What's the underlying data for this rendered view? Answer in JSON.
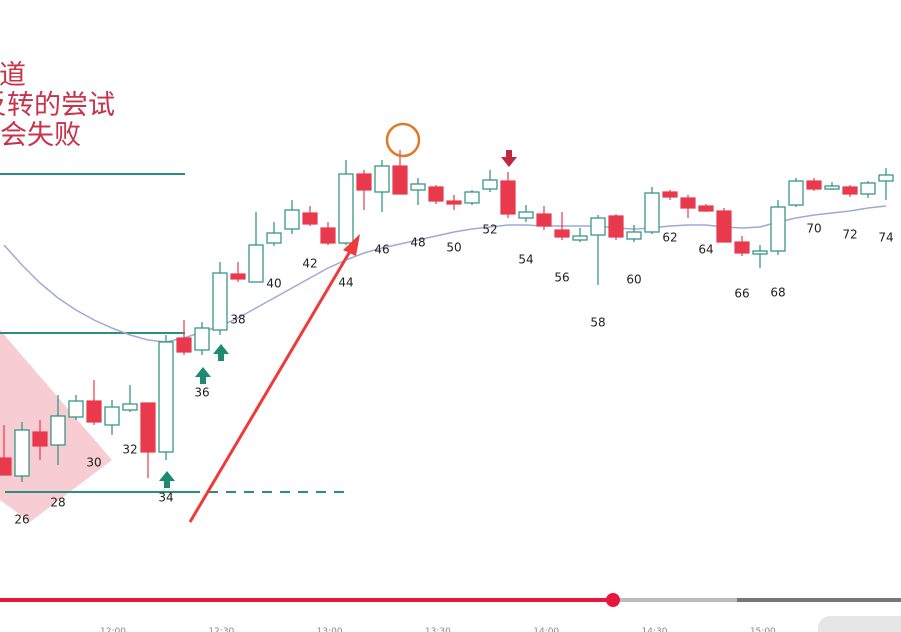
{
  "chart_data": {
    "type": "candlestick",
    "annotations": [
      "通道",
      "反转的尝试",
      "会失败"
    ],
    "categories": [
      null,
      "26",
      null,
      "28",
      null,
      "30",
      null,
      "32",
      null,
      "34",
      null,
      "36",
      null,
      "38",
      null,
      "40",
      null,
      "42",
      null,
      "44",
      null,
      "46",
      null,
      "48",
      null,
      "50",
      null,
      "52",
      null,
      "54",
      null,
      "56",
      null,
      "58",
      null,
      "60",
      null,
      "62",
      null,
      "64",
      null,
      "66",
      null,
      "68",
      null,
      "70",
      null,
      "72",
      null,
      "74"
    ],
    "open": [
      142,
      124,
      168,
      155,
      183,
      199,
      175,
      190,
      197,
      148,
      262,
      250,
      270,
      326,
      318,
      357,
      371,
      387,
      372,
      357,
      426,
      408,
      434,
      410,
      413,
      399,
      397,
      411,
      419,
      382,
      386,
      370,
      360,
      365,
      384,
      361,
      368,
      408,
      402,
      394,
      389,
      358,
      346,
      349,
      395,
      419,
      411,
      413,
      406,
      419
    ],
    "high": [
      175,
      178,
      180,
      205,
      205,
      220,
      200,
      215,
      197,
      265,
      280,
      278,
      338,
      338,
      388,
      378,
      400,
      394,
      378,
      440,
      430,
      440,
      450,
      422,
      415,
      405,
      410,
      430,
      428,
      395,
      394,
      388,
      372,
      385,
      386,
      375,
      413,
      410,
      405,
      396,
      392,
      364,
      355,
      400,
      422,
      422,
      418,
      415,
      419,
      432
    ],
    "low": [
      125,
      118,
      140,
      135,
      180,
      175,
      165,
      188,
      122,
      140,
      245,
      245,
      265,
      318,
      318,
      354,
      366,
      374,
      355,
      355,
      390,
      388,
      406,
      395,
      396,
      390,
      395,
      408,
      382,
      378,
      370,
      360,
      358,
      315,
      360,
      358,
      366,
      400,
      382,
      388,
      358,
      344,
      332,
      345,
      393,
      409,
      410,
      403,
      402,
      400
    ],
    "close": [
      125,
      170,
      154,
      184,
      199,
      178,
      193,
      196,
      148,
      258,
      248,
      272,
      327,
      321,
      355,
      367,
      390,
      376,
      357,
      426,
      410,
      434,
      406,
      416,
      399,
      396,
      408,
      420,
      386,
      388,
      374,
      363,
      364,
      382,
      363,
      368,
      407,
      403,
      392,
      389,
      358,
      347,
      349,
      393,
      419,
      411,
      414,
      406,
      417,
      425
    ],
    "ma": [
      355,
      335,
      317,
      302,
      290,
      280,
      272,
      265,
      260,
      258,
      262,
      268,
      274,
      282,
      292,
      302,
      312,
      322,
      332,
      340,
      347,
      352,
      356,
      360,
      364,
      368,
      371,
      373,
      375,
      375,
      374,
      374,
      374,
      374,
      372,
      371,
      372,
      374,
      375,
      375,
      373,
      372,
      373,
      378,
      382,
      385,
      387,
      389,
      392,
      394
    ],
    "levels": [
      426,
      267,
      108
    ],
    "time_labels": [
      "12:00",
      "12:30",
      "13:00",
      "13:30",
      "14:00",
      "14:30",
      "15:00"
    ],
    "ylim": [
      0,
      600
    ],
    "up_color": "#2a8f7c",
    "down_color": "#e8394d",
    "ma_color": "#9eaad6",
    "level_color": "#2a8f7c"
  }
}
